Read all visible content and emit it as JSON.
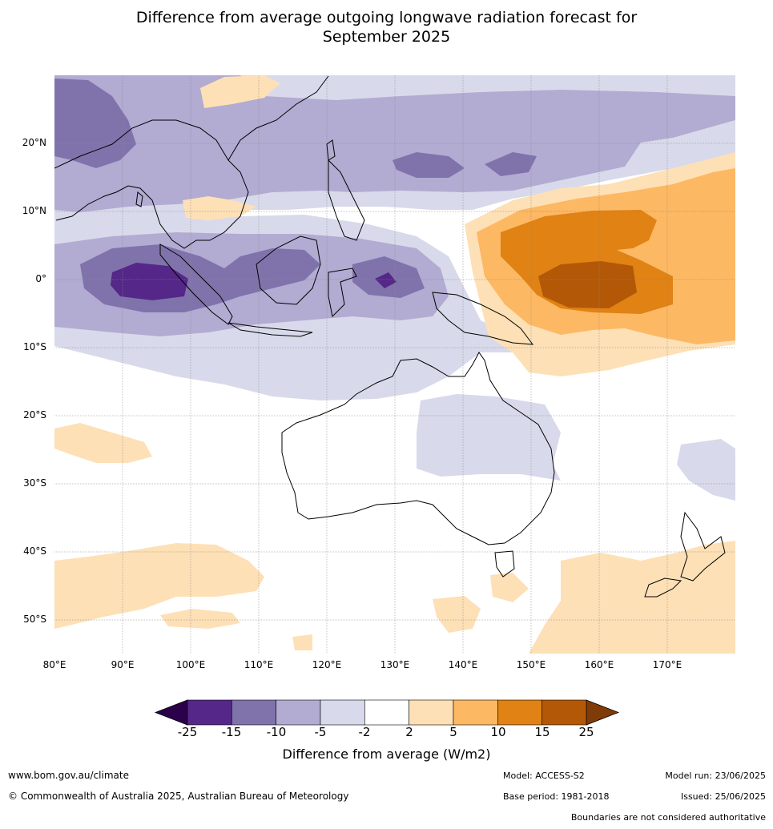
{
  "title_line1": "Difference from average outgoing longwave radiation forecast for",
  "title_line2": "September 2025",
  "lat_labels": [
    "20°N",
    "10°N",
    "0°",
    "10°S",
    "20°S",
    "30°S",
    "40°S",
    "50°S"
  ],
  "lon_labels": [
    "80°E",
    "90°E",
    "100°E",
    "110°E",
    "120°E",
    "130°E",
    "140°E",
    "150°E",
    "160°E",
    "170°E"
  ],
  "colorbar": {
    "ticks": [
      "-25",
      "-15",
      "-10",
      "-5",
      "-2",
      "2",
      "5",
      "10",
      "15",
      "25"
    ],
    "colors": [
      "#542788",
      "#8073ac",
      "#b2abd2",
      "#d8daeb",
      "#ffffff",
      "#fee0b6",
      "#fdb863",
      "#e08214",
      "#b35806"
    ],
    "under_color": "#2d004b",
    "over_color": "#7f3b08",
    "label": "Difference from average (W/m2)"
  },
  "footer": {
    "website": "www.bom.gov.au/climate",
    "copyright": "© Commonwealth of Australia 2025, Australian Bureau of Meteorology",
    "model": "Model: ACCESS-S2",
    "base_period": "Base period: 1981-2018",
    "model_run": "Model run: 23/06/2025",
    "issued": "Issued: 25/06/2025",
    "disclaimer": "Boundaries are not considered authoritative"
  }
}
